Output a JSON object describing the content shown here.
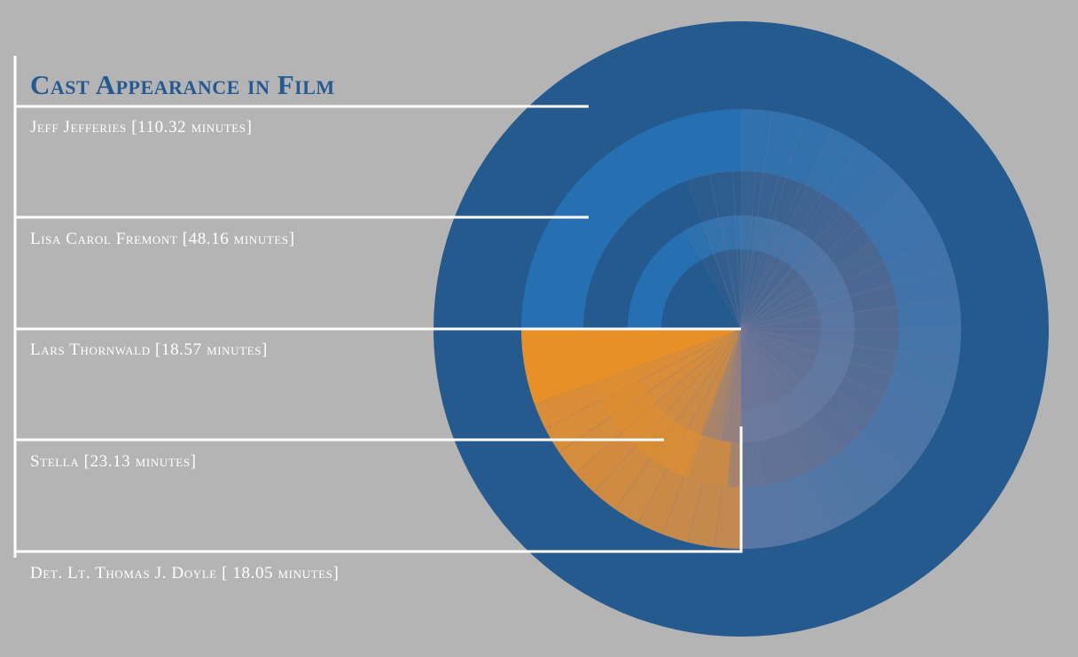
{
  "chart_data": {
    "type": "radial",
    "title": "Cast Appearance in Film",
    "legend_position": "left",
    "series": [
      {
        "name": "Jeff Jefferies",
        "label": "Jeff Jefferies [110.32 minutes]",
        "minutes": 110.32
      },
      {
        "name": "Lisa Carol Fremont",
        "label": "Lisa Carol Fremont [48.16 minutes]",
        "minutes": 48.16
      },
      {
        "name": "Lars Thornwald",
        "label": "Lars Thornwald [18.57 minutes]",
        "minutes": 18.57
      },
      {
        "name": "Stella",
        "label": "Stella [23.13 minutes]",
        "minutes": 23.13
      },
      {
        "name": "Det. Lt. Thomas J. Doyle",
        "label": "Det. Lt. Thomas J. Doyle [ 18.05 minutes]",
        "minutes": 18.05
      }
    ]
  },
  "colors": {
    "background": "#b4b4b4",
    "title": "#245a91",
    "ring_dark_blue": "#255a8e",
    "ring_light_blue": "#2670b1",
    "orange": "#e89028",
    "gray_segment": "#7a7c9a",
    "rule_line": "#ffffff"
  }
}
